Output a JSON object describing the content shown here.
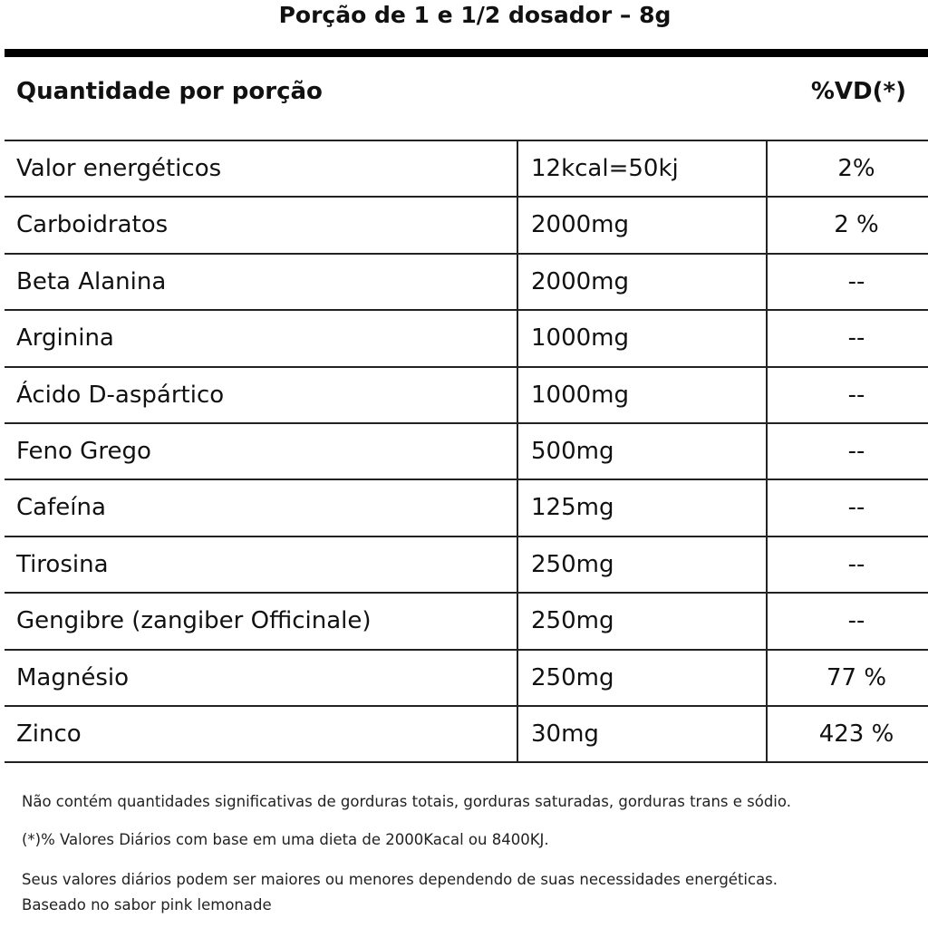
{
  "header": {
    "title": "Porção de 1 e 1/2 dosador – 8g"
  },
  "table": {
    "columns": [
      "Quantidade por porção",
      "%VD(*)"
    ],
    "rows": [
      [
        "Valor energéticos",
        "12kcal=50kj",
        "2%"
      ],
      [
        "Carboidratos",
        "2000mg",
        "2 %"
      ],
      [
        "Beta Alanina",
        "2000mg",
        "--"
      ],
      [
        "Arginina",
        "1000mg",
        "--"
      ],
      [
        "Ácido D-aspártico",
        "1000mg",
        "--"
      ],
      [
        "Feno Grego",
        "500mg",
        "--"
      ],
      [
        "Cafeína",
        "125mg",
        "--"
      ],
      [
        "Tirosina",
        "250mg",
        "--"
      ],
      [
        "Gengibre (zangiber Officinale)",
        "250mg",
        "--"
      ],
      [
        "Magnésio",
        "250mg",
        "77 %"
      ],
      [
        "Zinco",
        "30mg",
        "423 %"
      ]
    ]
  },
  "notes": [
    "Não contém quantidades significativas de gorduras totais, gorduras saturadas, gorduras trans e sódio.",
    "(*)% Valores Diários com base em uma dieta de 2000Kacal ou 8400KJ.",
    "Seus valores diários podem ser maiores ou menores dependendo de suas necessidades energéticas.",
    "Baseado no sabor pink lemonade"
  ]
}
